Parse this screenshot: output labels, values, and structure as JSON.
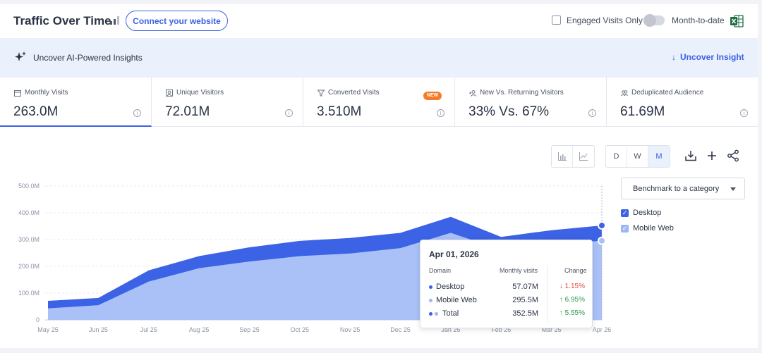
{
  "header": {
    "title": "Traffic Over Time",
    "connect_label": "Connect your website",
    "engaged_label": "Engaged Visits Only",
    "mtd_label": "Month-to-date"
  },
  "banner": {
    "text": "Uncover AI-Powered Insights",
    "action": "Uncover Insight"
  },
  "metrics": [
    {
      "label": "Monthly Visits",
      "value": "263.0M",
      "icon": "calendar-icon"
    },
    {
      "label": "Unique Visitors",
      "value": "72.01M",
      "icon": "person-icon"
    },
    {
      "label": "Converted Visits",
      "value": "3.510M",
      "icon": "funnel-icon",
      "badge": "NEW"
    },
    {
      "label": "New Vs. Returning Visitors",
      "value": "33% Vs. 67%",
      "icon": "user-plus-icon"
    },
    {
      "label": "Deduplicated Audience",
      "value": "61.69M",
      "icon": "group-icon"
    }
  ],
  "toolbar": {
    "granularity": [
      "D",
      "W",
      "M"
    ],
    "selected": "M"
  },
  "legend": {
    "benchmark_label": "Benchmark to a category",
    "items": [
      {
        "name": "Desktop",
        "color": "#3c62e6"
      },
      {
        "name": "Mobile Web",
        "color": "#9db6f5"
      }
    ]
  },
  "chart_data": {
    "type": "area",
    "x": [
      "May 25",
      "Jun 25",
      "Jul 25",
      "Aug 25",
      "Sep 25",
      "Oct 25",
      "Nov 25",
      "Dec 25",
      "Jan 26",
      "Feb 26",
      "Mar 26",
      "Apr 26"
    ],
    "yticks": [
      "0",
      "100.0M",
      "200.0M",
      "300.0M",
      "400.0M",
      "500.0M"
    ],
    "ylim": [
      0,
      500
    ],
    "stacked": true,
    "series": [
      {
        "name": "Mobile Web",
        "color": "#a9c1f7",
        "values": [
          43,
          55,
          143,
          193,
          218,
          238,
          248,
          268,
          325,
          262,
          283,
          295.5
        ]
      },
      {
        "name": "Desktop",
        "color": "#3c62e6",
        "values": [
          28,
          27,
          42,
          45,
          53,
          57,
          58,
          57,
          60,
          48,
          52,
          57.07
        ]
      }
    ]
  },
  "tooltip": {
    "date": "Apr 01, 2026",
    "col_domain": "Domain",
    "col_visits": "Monthly visits",
    "col_change": "Change",
    "rows": [
      {
        "domain": "Desktop",
        "visits": "57.07M",
        "change": "1.15%",
        "dir": "down"
      },
      {
        "domain": "Mobile Web",
        "visits": "295.5M",
        "change": "6.95%",
        "dir": "up"
      },
      {
        "domain": "Total",
        "visits": "352.5M",
        "change": "5.55%",
        "dir": "up"
      }
    ]
  }
}
